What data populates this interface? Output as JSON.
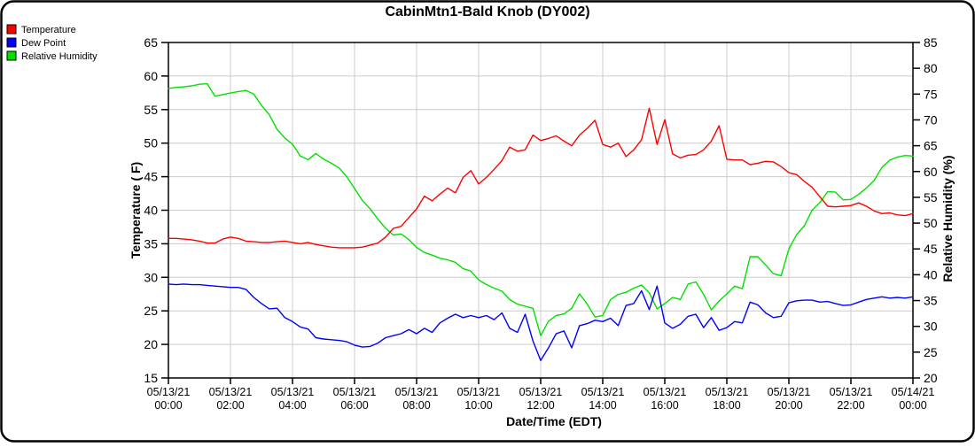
{
  "title": "CabinMtn1-Bald Knob (DY002)",
  "legend": {
    "items": [
      {
        "label": "Temperature",
        "color": "#ff0000"
      },
      {
        "label": "Dew Point",
        "color": "#0000ff"
      },
      {
        "label": "Relative Humidity",
        "color": "#00e000"
      }
    ]
  },
  "colors": {
    "grid": "#cccccc",
    "axis": "#000000",
    "background": "#ffffff"
  },
  "chart_data": {
    "type": "line",
    "title": "CabinMtn1-Bald Knob (DY002)",
    "grid": "on",
    "legend_position": "top-left",
    "axes": {
      "left": {
        "title": "Temperature ( F)",
        "min": 15,
        "max": 65,
        "ticks": [
          15,
          20,
          25,
          30,
          35,
          40,
          45,
          50,
          55,
          60,
          65
        ]
      },
      "right": {
        "title": "Relative Humidity (%)",
        "min": 20,
        "max": 85,
        "ticks": [
          20,
          25,
          30,
          35,
          40,
          45,
          50,
          55,
          60,
          65,
          70,
          75,
          80,
          85
        ]
      },
      "x": {
        "title": "Date/Time (EDT)",
        "min_minutes": 0,
        "max_minutes": 1440,
        "ticks": [
          {
            "min": 0,
            "date": "05/13/21",
            "time": "00:00"
          },
          {
            "min": 120,
            "date": "05/13/21",
            "time": "02:00"
          },
          {
            "min": 240,
            "date": "05/13/21",
            "time": "04:00"
          },
          {
            "min": 360,
            "date": "05/13/21",
            "time": "06:00"
          },
          {
            "min": 480,
            "date": "05/13/21",
            "time": "08:00"
          },
          {
            "min": 600,
            "date": "05/13/21",
            "time": "10:00"
          },
          {
            "min": 720,
            "date": "05/13/21",
            "time": "12:00"
          },
          {
            "min": 840,
            "date": "05/13/21",
            "time": "14:00"
          },
          {
            "min": 960,
            "date": "05/13/21",
            "time": "16:00"
          },
          {
            "min": 1080,
            "date": "05/13/21",
            "time": "18:00"
          },
          {
            "min": 1200,
            "date": "05/13/21",
            "time": "20:00"
          },
          {
            "min": 1320,
            "date": "05/13/21",
            "time": "22:00"
          },
          {
            "min": 1440,
            "date": "05/14/21",
            "time": "00:00"
          }
        ]
      }
    },
    "x_minutes": [
      0,
      15,
      30,
      45,
      60,
      75,
      90,
      105,
      120,
      135,
      150,
      165,
      180,
      195,
      210,
      225,
      240,
      255,
      270,
      285,
      300,
      315,
      330,
      345,
      360,
      375,
      390,
      405,
      420,
      435,
      450,
      465,
      480,
      495,
      510,
      525,
      540,
      555,
      570,
      585,
      600,
      615,
      630,
      645,
      660,
      675,
      690,
      705,
      720,
      735,
      750,
      765,
      780,
      795,
      810,
      825,
      840,
      855,
      870,
      885,
      900,
      915,
      930,
      945,
      960,
      975,
      990,
      1005,
      1020,
      1035,
      1050,
      1065,
      1080,
      1095,
      1110,
      1125,
      1140,
      1155,
      1170,
      1185,
      1200,
      1215,
      1230,
      1245,
      1260,
      1275,
      1290,
      1305,
      1320,
      1335,
      1350,
      1365,
      1380,
      1395,
      1410,
      1425,
      1440
    ],
    "series": [
      {
        "name": "Temperature",
        "axis": "left",
        "color": "#ff0000",
        "units": "F",
        "values": [
          35.8,
          35.8,
          35.7,
          35.6,
          35.4,
          35.1,
          35.1,
          35.7,
          36.0,
          35.8,
          35.4,
          35.3,
          35.2,
          35.2,
          35.3,
          35.4,
          35.2,
          35.0,
          35.2,
          34.9,
          34.7,
          34.5,
          34.4,
          34.4,
          34.4,
          34.5,
          34.8,
          35.1,
          36.0,
          37.3,
          37.6,
          38.9,
          40.2,
          42.1,
          41.4,
          42.4,
          43.3,
          42.6,
          44.9,
          45.9,
          43.9,
          44.9,
          46.1,
          47.4,
          49.4,
          48.8,
          49.0,
          51.2,
          50.4,
          50.7,
          51.1,
          50.3,
          49.6,
          51.2,
          52.2,
          53.4,
          49.8,
          49.4,
          50.0,
          48.0,
          49.0,
          50.5,
          55.2,
          49.8,
          53.5,
          48.4,
          47.8,
          48.2,
          48.3,
          49.0,
          50.3,
          52.6,
          47.6,
          47.5,
          47.5,
          46.8,
          47.0,
          47.3,
          47.2,
          46.5,
          45.6,
          45.3,
          44.3,
          43.4,
          42.0,
          40.6,
          40.5,
          40.6,
          40.7,
          41.1,
          40.6,
          39.9,
          39.5,
          39.6,
          39.3,
          39.2,
          39.5
        ]
      },
      {
        "name": "Dew Point",
        "axis": "left",
        "color": "#0000ff",
        "units": "F",
        "values": [
          29.0,
          28.9,
          29.0,
          28.9,
          28.9,
          28.8,
          28.7,
          28.6,
          28.5,
          28.5,
          28.2,
          27.0,
          26.1,
          25.3,
          25.4,
          24.0,
          23.4,
          22.6,
          22.3,
          21.0,
          20.8,
          20.7,
          20.6,
          20.4,
          19.9,
          19.6,
          19.7,
          20.2,
          21.0,
          21.3,
          21.6,
          22.2,
          21.6,
          22.4,
          21.8,
          23.2,
          23.9,
          24.5,
          24.0,
          24.3,
          24.0,
          24.3,
          23.7,
          24.7,
          22.4,
          21.8,
          24.5,
          20.5,
          17.6,
          19.5,
          21.6,
          22.0,
          19.5,
          22.8,
          23.1,
          23.6,
          23.4,
          23.9,
          22.8,
          25.8,
          26.1,
          28.0,
          25.2,
          28.7,
          23.2,
          22.4,
          23.0,
          24.2,
          24.5,
          22.5,
          24.0,
          22.1,
          22.5,
          23.4,
          23.2,
          26.3,
          25.9,
          24.7,
          24.0,
          24.2,
          26.2,
          26.5,
          26.6,
          26.6,
          26.3,
          26.4,
          26.1,
          25.8,
          25.9,
          26.3,
          26.7,
          26.9,
          27.1,
          26.9,
          27.0,
          26.9,
          27.1
        ]
      },
      {
        "name": "Relative Humidity",
        "axis": "right",
        "color": "#00e000",
        "units": "%",
        "values": [
          76.1,
          76.3,
          76.4,
          76.6,
          76.9,
          77.0,
          74.6,
          74.9,
          75.2,
          75.5,
          75.7,
          75.0,
          72.8,
          71.0,
          68.2,
          66.5,
          65.3,
          63.0,
          62.3,
          63.5,
          62.4,
          61.6,
          60.7,
          59.0,
          56.7,
          54.4,
          52.8,
          50.8,
          49.0,
          47.7,
          47.9,
          46.8,
          45.3,
          44.3,
          43.8,
          43.2,
          42.9,
          42.4,
          41.2,
          40.7,
          39.0,
          38.1,
          37.4,
          36.8,
          35.2,
          34.3,
          33.9,
          33.5,
          28.2,
          31.0,
          32.1,
          32.4,
          33.5,
          36.3,
          34.3,
          31.8,
          32.1,
          35.2,
          36.2,
          36.6,
          37.4,
          38.0,
          36.5,
          33.4,
          34.4,
          35.6,
          35.2,
          38.2,
          38.6,
          36.2,
          33.2,
          34.9,
          36.3,
          37.8,
          37.3,
          43.5,
          43.5,
          41.9,
          40.2,
          39.8,
          45.0,
          47.8,
          49.5,
          52.5,
          54.0,
          56.1,
          56.0,
          54.5,
          54.6,
          55.6,
          56.8,
          58.3,
          60.8,
          62.2,
          62.8,
          63.1,
          63.0
        ]
      }
    ]
  }
}
